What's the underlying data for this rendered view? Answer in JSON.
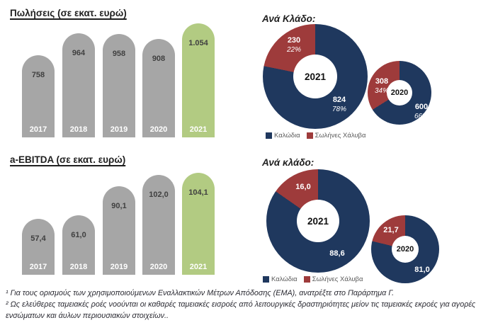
{
  "colors": {
    "bar_gray": "#a6a6a6",
    "bar_green": "#b2cb82",
    "navy": "#1f385e",
    "red": "#9e3b3b"
  },
  "footnotes": [
    "¹ Για τους ορισμούς των χρησιμοποιούμενων Εναλλακτικών Μέτρων Απόδοσης (ΕΜΑ), ανατρέξτε στο Παράρτημα Γ.",
    "² Ως ελεύθερες ταμειακές ροές νοούνται οι καθαρές ταμειακές εισροές από λειτουργικές δραστηριότητες μείον τις ταμειακές εκροές για αγορές ενσώματων και άυλων περιουσιακών στοιχείων.."
  ],
  "chart_data": [
    {
      "type": "bar",
      "title": "Πωλήσεις (σε εκατ. ευρώ)",
      "categories": [
        "2017",
        "2018",
        "2019",
        "2020",
        "2021"
      ],
      "values": [
        758,
        964,
        958,
        908,
        1054
      ],
      "value_labels": [
        "758",
        "964",
        "958",
        "908",
        "1.054"
      ],
      "highlight_index": 4,
      "ylim": [
        0,
        1054
      ],
      "grid": false,
      "unit": "εκατ. ευρώ"
    },
    {
      "type": "pie",
      "title": "Ανά Κλάδο:",
      "legend": [
        "Καλώδια",
        "Σωλήνες Χάλυβα"
      ],
      "legend_position": "bottom-left",
      "donuts": [
        {
          "year": "2021",
          "series": [
            {
              "name": "Καλώδια",
              "value": 824,
              "label": "824",
              "pct": "78%"
            },
            {
              "name": "Σωλήνες Χάλυβα",
              "value": 230,
              "label": "230",
              "pct": "22%"
            }
          ]
        },
        {
          "year": "2020",
          "series": [
            {
              "name": "Καλώδια",
              "value": 600,
              "label": "600",
              "pct": "66%"
            },
            {
              "name": "Σωλήνες Χάλυβα",
              "value": 308,
              "label": "308",
              "pct": "34%"
            }
          ]
        }
      ]
    },
    {
      "type": "bar",
      "title": "a-EBITDA (σε εκατ. ευρώ)",
      "categories": [
        "2017",
        "2018",
        "2019",
        "2020",
        "2021"
      ],
      "values": [
        57.4,
        61.0,
        90.1,
        102.0,
        104.1
      ],
      "value_labels": [
        "57,4",
        "61,0",
        "90,1",
        "102,0",
        "104,1"
      ],
      "highlight_index": 4,
      "ylim": [
        0,
        104.1
      ],
      "grid": false,
      "unit": "εκατ. ευρώ"
    },
    {
      "type": "pie",
      "title": "Ανά κλάδο:",
      "legend": [
        "Καλώδια",
        "Σωλήνες Χάλυβα"
      ],
      "legend_position": "bottom-left",
      "donuts": [
        {
          "year": "2021",
          "series": [
            {
              "name": "Καλώδια",
              "value": 88.6,
              "label": "88,6"
            },
            {
              "name": "Σωλήνες Χάλυβα",
              "value": 16.0,
              "label": "16,0"
            }
          ]
        },
        {
          "year": "2020",
          "series": [
            {
              "name": "Καλώδια",
              "value": 81.0,
              "label": "81,0"
            },
            {
              "name": "Σωλήνες Χάλυβα",
              "value": 21.7,
              "label": "21,7"
            }
          ]
        }
      ]
    }
  ]
}
